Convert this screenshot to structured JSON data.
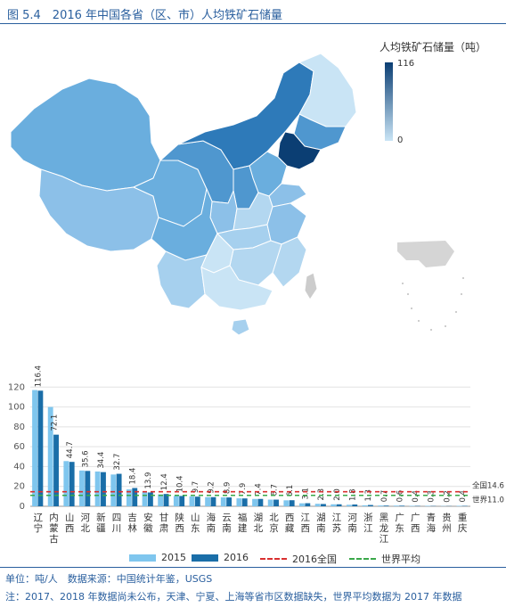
{
  "figure": {
    "title": "图 5.4　2016 年中国各省（区、市）人均铁矿石储量"
  },
  "map": {
    "legend_title": "人均铁矿石储量（吨）",
    "legend_max": "116",
    "legend_min": "0",
    "color_high": "#0b3e73",
    "color_low": "#c9e4f5"
  },
  "chart_data": {
    "type": "bar",
    "categories": [
      "辽宁",
      "内蒙古",
      "山西",
      "河北",
      "新疆",
      "四川",
      "吉林",
      "安徽",
      "甘肃",
      "陕西",
      "山东",
      "海南",
      "云南",
      "福建",
      "湖北",
      "北京",
      "西藏",
      "江西",
      "湖南",
      "江苏",
      "河南",
      "浙江",
      "黑龙江",
      "广东",
      "广西",
      "青海",
      "贵州",
      "重庆"
    ],
    "series": [
      {
        "name": "2015",
        "color": "#7fc6ee",
        "values": [
          117,
          100,
          45.5,
          36,
          35,
          32,
          17,
          14,
          12,
          10.4,
          10,
          9.2,
          9,
          8,
          7.4,
          6.7,
          6,
          3,
          2.5,
          2,
          1.5,
          1,
          0.8,
          0.7,
          0.5,
          0.5,
          0.3,
          0.5
        ]
      },
      {
        "name": "2016",
        "color": "#1a6ea8",
        "values": [
          116.4,
          72.1,
          44.7,
          35.6,
          34.4,
          32.7,
          18.4,
          13.9,
          12.4,
          10.4,
          9.7,
          9.2,
          8.9,
          7.9,
          7.4,
          6.7,
          6.1,
          3.1,
          2.3,
          2.0,
          1.8,
          1.3,
          0.7,
          0.6,
          0.4,
          0.3,
          0.2,
          0.4
        ]
      }
    ],
    "value_labels": [
      "116.4",
      "72.1",
      "44.7",
      "35.6",
      "34.4",
      "32.7",
      "18.4",
      "13.9",
      "12.4",
      "10.4",
      "9.7",
      "9.2",
      "8.9",
      "7.9",
      "7.4",
      "6.7",
      "6.1",
      "3.1",
      "2.3",
      "2.0",
      "1.8",
      "1.3",
      "0.7",
      "0.6",
      "0.4",
      "0.3",
      "0.2",
      "0.4"
    ],
    "reference_lines": [
      {
        "name": "2016全国",
        "value": 14.6,
        "label": "全国14.6",
        "color": "#d93030"
      },
      {
        "name": "世界平均",
        "value": 11.0,
        "label": "世界11.0",
        "color": "#3aa84a"
      }
    ],
    "y_ticks": [
      0,
      20,
      40,
      60,
      80,
      100,
      120
    ],
    "ylim": [
      0,
      140
    ],
    "grid": true
  },
  "legend": {
    "items": [
      {
        "label": "2015"
      },
      {
        "label": "2016"
      },
      {
        "label": "2016全国"
      },
      {
        "label": "世界平均"
      }
    ]
  },
  "footer": {
    "unit_source": "单位：吨/人　数据来源：中国统计年鉴，USGS",
    "note": "注：2017、2018 年数据尚未公布，天津、宁夏、上海等省市区数据缺失，世界平均数据为 2017 年数据"
  }
}
